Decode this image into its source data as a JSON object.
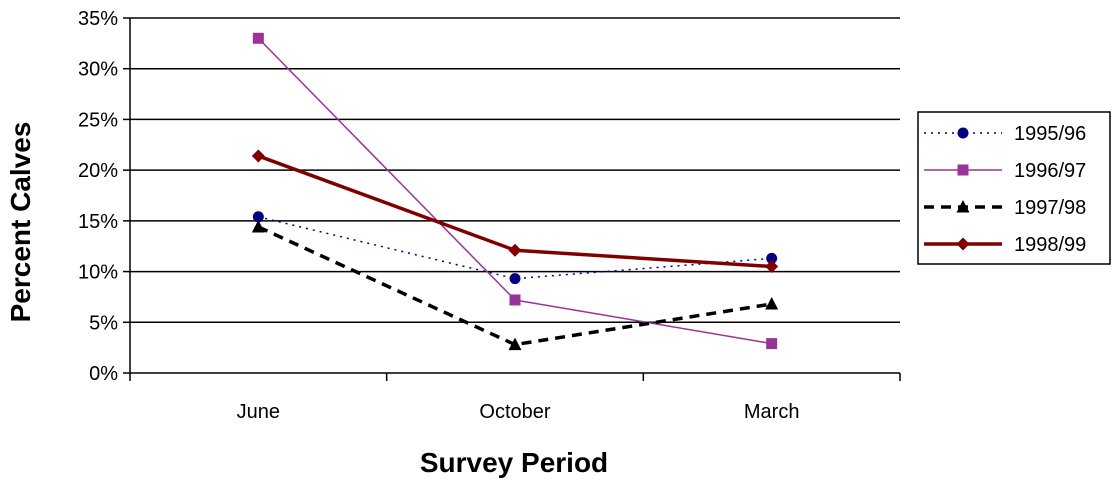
{
  "chart_data": {
    "type": "line",
    "title": "",
    "xlabel": "Survey Period",
    "ylabel": "Percent Calves",
    "categories": [
      "June",
      "October",
      "March"
    ],
    "ylim": [
      0,
      35
    ],
    "yticks": [
      0,
      5,
      10,
      15,
      20,
      25,
      30,
      35
    ],
    "ytick_labels": [
      "0%",
      "5%",
      "10%",
      "15%",
      "20%",
      "25%",
      "30%",
      "35%"
    ],
    "grid": true,
    "legend_position": "right",
    "series": [
      {
        "name": "1995/96",
        "values": [
          15.4,
          9.3,
          11.3
        ],
        "color": "#000080",
        "line_style": "dotted",
        "marker": "circle"
      },
      {
        "name": "1996/97",
        "values": [
          33.0,
          7.2,
          2.9
        ],
        "color": "#993399",
        "line_style": "solid-thin",
        "marker": "square"
      },
      {
        "name": "1997/98",
        "values": [
          14.4,
          2.8,
          6.8
        ],
        "color": "#000000",
        "line_style": "dashed",
        "marker": "triangle"
      },
      {
        "name": "1998/99",
        "values": [
          21.4,
          12.1,
          10.5
        ],
        "color": "#800000",
        "line_style": "solid-thick",
        "marker": "diamond"
      }
    ]
  }
}
